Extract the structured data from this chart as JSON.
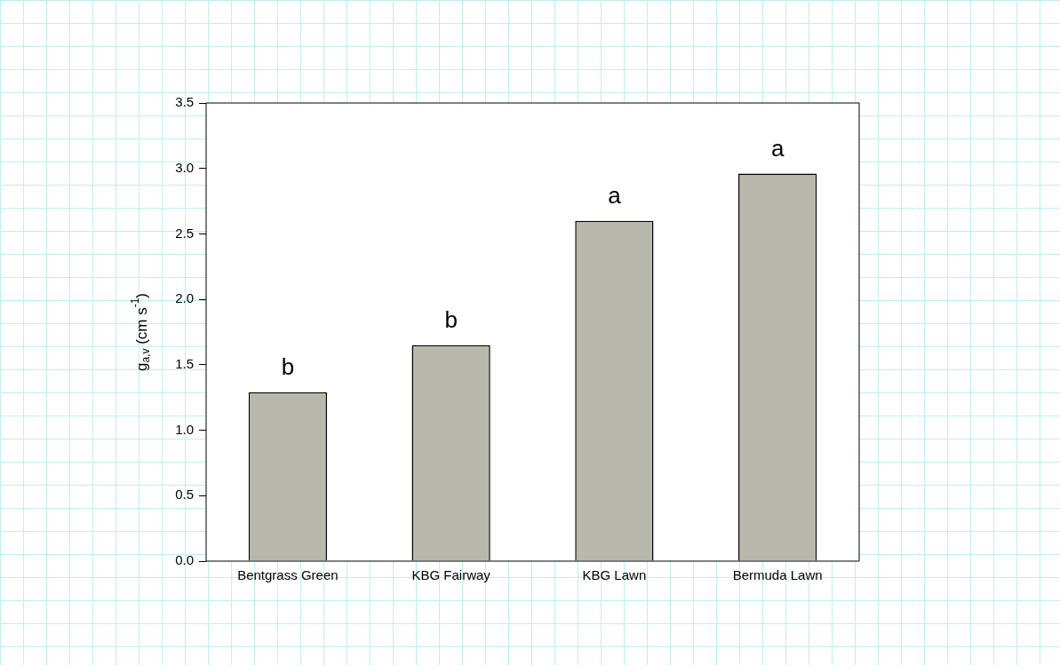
{
  "chart_data": {
    "type": "bar",
    "ylabel": "g$_{a,v}$ (cm s$^{-1}$)",
    "categories": [
      "Bentgrass Green",
      "KBG Fairway",
      "KBG Lawn",
      "Bermuda Lawn"
    ],
    "values": [
      1.29,
      1.65,
      2.6,
      2.96
    ],
    "color": "#b8b8ac",
    "ylim": [
      0,
      3.5
    ],
    "yticks": [
      {
        "value": 0,
        "label": "0.0"
      },
      {
        "value": 0.5,
        "label": "0.5"
      },
      {
        "value": 1,
        "label": "1.0"
      },
      {
        "value": 1.5,
        "label": "1.5"
      },
      {
        "value": 2,
        "label": "2.0"
      },
      {
        "value": 2.5,
        "label": "2.5"
      },
      {
        "value": 3,
        "label": "3.0"
      },
      {
        "value": 3.5,
        "label": "3.5"
      }
    ],
    "annotations": [
      {
        "text": "b",
        "x": "Bentgrass Green",
        "y": 1.29
      },
      {
        "text": "b",
        "x": "KBG Fairway",
        "y": 1.65
      },
      {
        "text": "a",
        "x": "KBG Lawn",
        "y": 2.6
      },
      {
        "text": "a",
        "x": "Bermuda Lawn",
        "y": 2.96
      }
    ],
    "grid": false,
    "legend": false
  }
}
